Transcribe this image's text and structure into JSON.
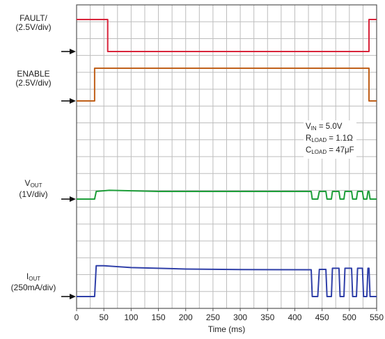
{
  "chart_data": {
    "type": "line",
    "xlabel": "Time (ms)",
    "xlim": [
      0,
      550
    ],
    "x_ticks": [
      0,
      50,
      100,
      150,
      200,
      250,
      300,
      350,
      400,
      450,
      500,
      550
    ],
    "grid": true,
    "series": [
      {
        "name": "FAULT/",
        "scale": "(2.5V/div)",
        "color": "#d8243a",
        "level": [
          [
            0,
            1
          ],
          [
            57,
            1
          ],
          [
            57,
            0
          ],
          [
            536,
            0
          ],
          [
            536,
            1
          ],
          [
            550,
            1
          ]
        ]
      },
      {
        "name": "ENABLE",
        "scale": "(2.5V/div)",
        "color": "#c0601a",
        "level": [
          [
            0,
            0
          ],
          [
            33,
            0
          ],
          [
            33,
            1
          ],
          [
            536,
            1
          ],
          [
            536,
            0
          ],
          [
            550,
            0
          ]
        ]
      },
      {
        "name": "V",
        "name_sub": "OUT",
        "scale": "(1V/div)",
        "color": "#1e9e3a",
        "level": [
          [
            0,
            0
          ],
          [
            33,
            0
          ],
          [
            36,
            1
          ],
          [
            60,
            1.15
          ],
          [
            150,
            1
          ],
          [
            430,
            1
          ],
          [
            432,
            0
          ],
          [
            442,
            0
          ],
          [
            445,
            1
          ],
          [
            457,
            1
          ],
          [
            459,
            0
          ],
          [
            467,
            0
          ],
          [
            469,
            1
          ],
          [
            481,
            1
          ],
          [
            483,
            0
          ],
          [
            490,
            0
          ],
          [
            492,
            1
          ],
          [
            504,
            1
          ],
          [
            506,
            0
          ],
          [
            513,
            0
          ],
          [
            515,
            1
          ],
          [
            524,
            1
          ],
          [
            526,
            0
          ],
          [
            532,
            0
          ],
          [
            534,
            1
          ],
          [
            536,
            1
          ],
          [
            538,
            0
          ],
          [
            550,
            0
          ]
        ]
      },
      {
        "name": "I",
        "name_sub": "OUT",
        "scale": "(250mA/div)",
        "color": "#2f3fa8",
        "level": [
          [
            0,
            0
          ],
          [
            33,
            0
          ],
          [
            36,
            0.85
          ],
          [
            50,
            0.85
          ],
          [
            100,
            0.8
          ],
          [
            200,
            0.76
          ],
          [
            300,
            0.745
          ],
          [
            430,
            0.74
          ],
          [
            432,
            0
          ],
          [
            442,
            0
          ],
          [
            445,
            0.75
          ],
          [
            457,
            0.75
          ],
          [
            459,
            0
          ],
          [
            467,
            0
          ],
          [
            469,
            0.78
          ],
          [
            481,
            0.78
          ],
          [
            483,
            0
          ],
          [
            490,
            0
          ],
          [
            492,
            0.78
          ],
          [
            504,
            0.78
          ],
          [
            506,
            0
          ],
          [
            513,
            0
          ],
          [
            515,
            0.78
          ],
          [
            524,
            0.78
          ],
          [
            526,
            0
          ],
          [
            532,
            0
          ],
          [
            534,
            0.78
          ],
          [
            536,
            0.78
          ],
          [
            538,
            0
          ],
          [
            550,
            0
          ]
        ]
      }
    ],
    "annotations": [
      {
        "main": "V",
        "sub": "IN",
        "rest": " = 5.0V"
      },
      {
        "main": "R",
        "sub": "LOAD",
        "rest": " = 1.1Ω"
      },
      {
        "main": "C",
        "sub": "LOAD",
        "rest": " = 47μF"
      }
    ],
    "style": {
      "frame_color": "#555555",
      "grid_color": "#bdbdbd",
      "marker_color": "#111111"
    }
  }
}
